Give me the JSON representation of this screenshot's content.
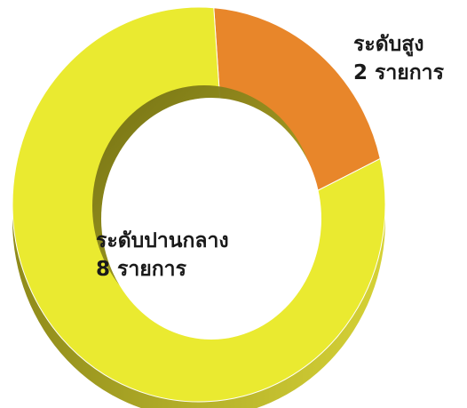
{
  "chart_data": {
    "type": "pie",
    "style": "3d-donut",
    "categories": [
      "ระดับสูง",
      "ระดับปานกลาง"
    ],
    "values": [
      2,
      8
    ],
    "data_labels": [
      {
        "name": "ระดับสูง",
        "count": "2 รายการ"
      },
      {
        "name": "ระดับปานกลาง",
        "count": "8 รายการ"
      }
    ],
    "colors": [
      "#e8862a",
      "#eaea30"
    ],
    "legend": "none",
    "grid": false
  }
}
